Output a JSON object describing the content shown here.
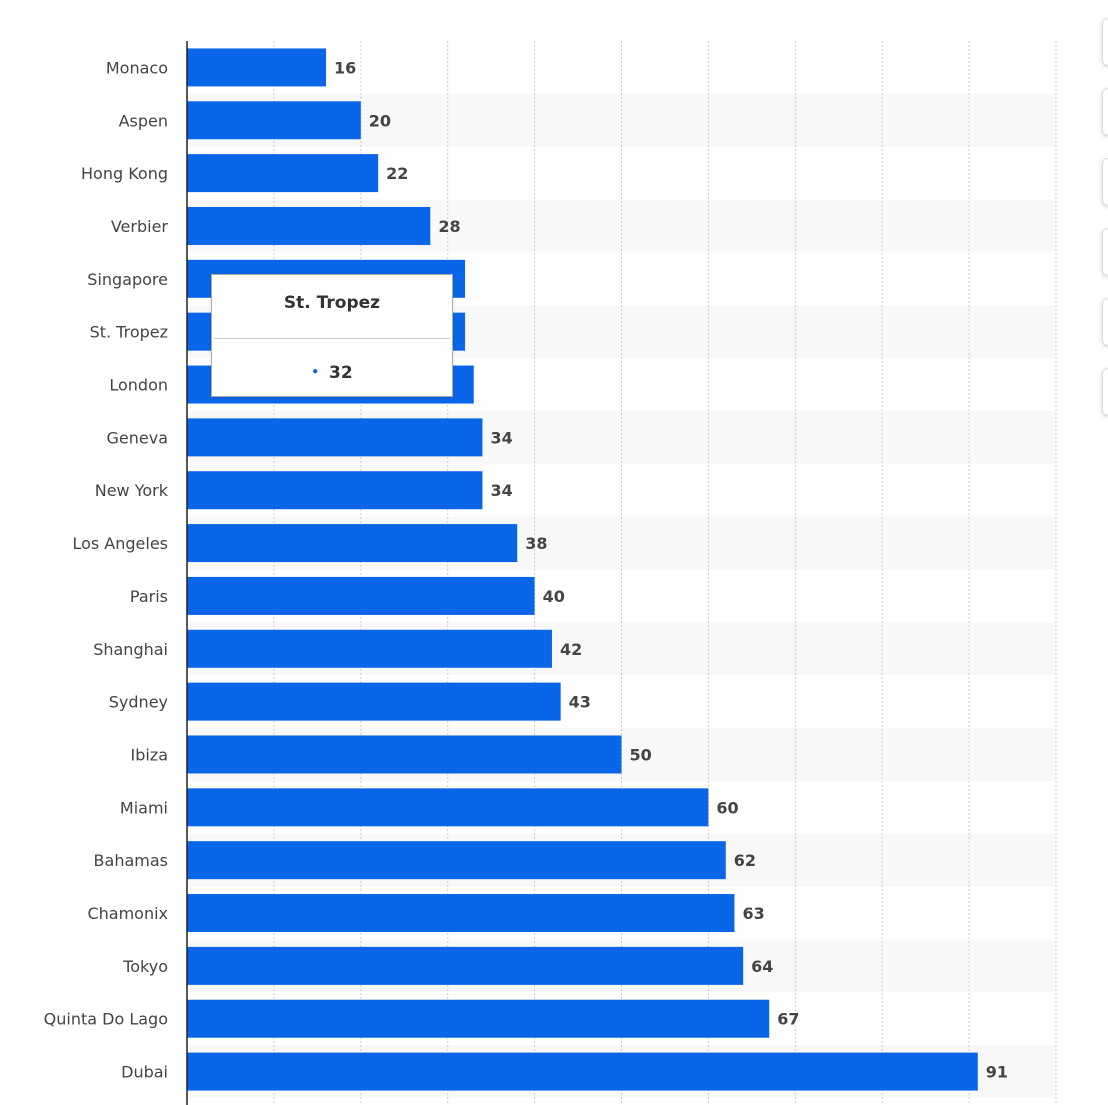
{
  "colors": {
    "bar": "#0a66e8",
    "band": "#f8f8f8",
    "grid": "#cccccc",
    "axis": "#222222",
    "text": "#444444"
  },
  "chart_data": {
    "type": "bar",
    "orientation": "horizontal",
    "title": "",
    "xlabel": "",
    "ylabel": "",
    "xlim": [
      0,
      100
    ],
    "grid": true,
    "categories": [
      "Monaco",
      "Aspen",
      "Hong Kong",
      "Verbier",
      "Singapore",
      "St. Tropez",
      "London",
      "Geneva",
      "New York",
      "Los Angeles",
      "Paris",
      "Shanghai",
      "Sydney",
      "Ibiza",
      "Miami",
      "Bahamas",
      "Chamonix",
      "Tokyo",
      "Quinta Do Lago",
      "Dubai"
    ],
    "values": [
      16,
      20,
      22,
      28,
      32,
      32,
      33,
      34,
      34,
      38,
      40,
      42,
      43,
      50,
      60,
      62,
      63,
      64,
      67,
      91
    ],
    "data_labels": [
      "16",
      "20",
      "22",
      "28",
      "",
      "",
      "",
      "34",
      "34",
      "38",
      "40",
      "42",
      "43",
      "50",
      "60",
      "62",
      "63",
      "64",
      "67",
      "91"
    ]
  },
  "tooltip": {
    "title": "St. Tropez",
    "marker": "•",
    "value": "32"
  }
}
